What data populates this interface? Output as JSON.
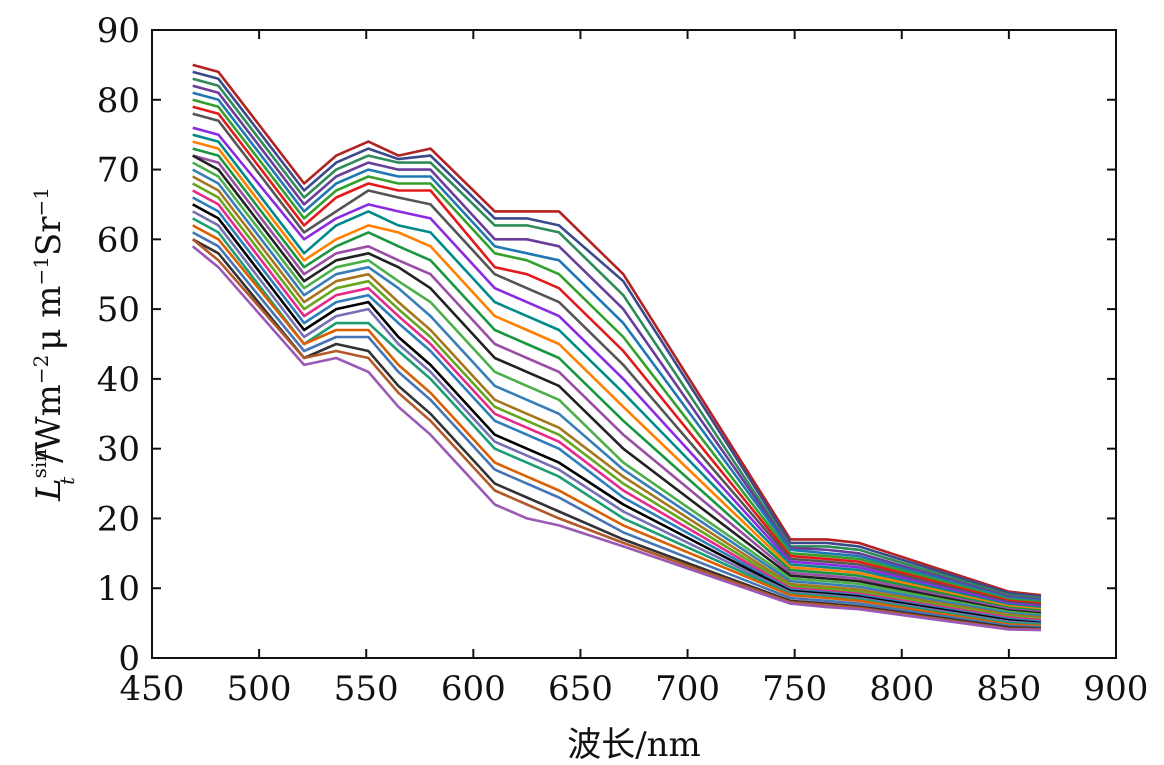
{
  "chart_data": {
    "type": "line",
    "title": "",
    "xlabel": "波长/nm",
    "ylabel": {
      "main": "L",
      "sub": "t",
      "sup": "sin",
      "unit_prefix": "/Wm",
      "exp1": "−2",
      "mid": "μ m",
      "exp2": "−1",
      "tail": "Sr",
      "exp3": "−1"
    },
    "xlim": [
      450,
      900
    ],
    "ylim": [
      0,
      90
    ],
    "xticks": [
      450,
      500,
      550,
      600,
      650,
      700,
      750,
      800,
      850,
      900
    ],
    "yticks": [
      0,
      10,
      20,
      30,
      40,
      50,
      60,
      70,
      80,
      90
    ],
    "grid": false,
    "legend": "none",
    "x": [
      469,
      481,
      521,
      536,
      551,
      565,
      580,
      610,
      625,
      640,
      670,
      748,
      765,
      780,
      850,
      865
    ],
    "series": [
      {
        "color": "#b22222",
        "values": [
          85,
          84,
          68,
          72,
          74,
          72,
          73,
          64,
          64,
          64,
          55,
          17,
          17,
          16.5,
          9.5,
          9
        ]
      },
      {
        "color": "#3b4a8c",
        "values": [
          84,
          83,
          67,
          71,
          73,
          71.5,
          72,
          63,
          63,
          62,
          54,
          16.5,
          16.5,
          16,
          9.3,
          8.8
        ]
      },
      {
        "color": "#2e8b57",
        "values": [
          83,
          82,
          66,
          70,
          72,
          71,
          71,
          62,
          62,
          61,
          52,
          16,
          16,
          15.5,
          9,
          8.6
        ]
      },
      {
        "color": "#6a3d9a",
        "values": [
          82,
          81,
          65,
          69,
          71,
          70,
          70,
          60,
          60,
          59,
          50,
          15.8,
          15.5,
          15,
          8.8,
          8.4
        ]
      },
      {
        "color": "#1f78b4",
        "values": [
          81,
          80,
          64,
          68,
          70,
          69,
          69,
          59,
          58,
          57,
          48,
          15.5,
          15,
          14.6,
          8.6,
          8.2
        ]
      },
      {
        "color": "#33a02c",
        "values": [
          80,
          79,
          63,
          67,
          69,
          68,
          68,
          58,
          57,
          55,
          46,
          15,
          14.6,
          14.2,
          8.4,
          8
        ]
      },
      {
        "color": "#e31a1c",
        "values": [
          79,
          78,
          62,
          66,
          68,
          67,
          67,
          56,
          55,
          53,
          44,
          14.6,
          14.2,
          13.8,
          8.2,
          7.8
        ]
      },
      {
        "color": "#555555",
        "values": [
          78,
          77,
          61,
          64,
          67,
          66,
          65,
          55,
          53,
          51,
          42,
          14.2,
          13.8,
          13.4,
          8,
          7.6
        ]
      },
      {
        "color": "#8a2be2",
        "values": [
          76,
          75,
          60,
          63,
          65,
          64,
          63,
          53,
          51,
          49,
          40,
          13.8,
          13.4,
          13,
          7.8,
          7.4
        ]
      },
      {
        "color": "#008b8b",
        "values": [
          75,
          74,
          58,
          62,
          64,
          62,
          61,
          51,
          49,
          47,
          38,
          13.4,
          13,
          12.6,
          7.6,
          7.2
        ]
      },
      {
        "color": "#ff7f00",
        "values": [
          74,
          73,
          57,
          60,
          62,
          61,
          59,
          49,
          47,
          45,
          36,
          13,
          12.6,
          12.2,
          7.4,
          7
        ]
      },
      {
        "color": "#1a9641",
        "values": [
          73,
          72,
          56,
          59,
          61,
          59,
          57,
          47,
          45,
          43,
          34,
          12.6,
          12.2,
          11.8,
          7.2,
          6.8
        ]
      },
      {
        "color": "#984ea3",
        "values": [
          72,
          71,
          55,
          58,
          59,
          57,
          55,
          45,
          43,
          41,
          32,
          12.2,
          11.8,
          11.4,
          7,
          6.6
        ]
      },
      {
        "color": "#222222",
        "values": [
          72,
          70,
          54,
          57,
          58,
          56,
          53,
          43,
          41,
          39,
          30,
          11.8,
          11.4,
          11,
          6.8,
          6.4
        ]
      },
      {
        "color": "#4daf4a",
        "values": [
          71,
          69,
          53,
          56,
          57,
          54,
          51,
          41,
          39,
          37,
          28,
          11.4,
          11,
          10.6,
          6.6,
          6.2
        ]
      },
      {
        "color": "#377eb8",
        "values": [
          70,
          68,
          52,
          55,
          56,
          53,
          49,
          39,
          37,
          35,
          27,
          11,
          10.6,
          10.2,
          6.4,
          6
        ]
      },
      {
        "color": "#a6761d",
        "values": [
          69,
          67,
          51,
          54,
          55,
          51,
          47,
          37,
          35,
          33,
          26,
          10.6,
          10.2,
          9.8,
          6.2,
          5.8
        ]
      },
      {
        "color": "#66a61e",
        "values": [
          68,
          66,
          50,
          53,
          54,
          50,
          46,
          36,
          34,
          32,
          25,
          10.3,
          9.9,
          9.5,
          6,
          5.6
        ]
      },
      {
        "color": "#e7298a",
        "values": [
          67,
          65,
          49,
          52,
          53,
          49,
          45,
          35,
          33,
          31,
          24,
          10,
          9.6,
          9.2,
          5.8,
          5.4
        ]
      },
      {
        "color": "#2c7fb8",
        "values": [
          66,
          64,
          48,
          51,
          52,
          48,
          44,
          34,
          32,
          30,
          23,
          9.8,
          9.4,
          9,
          5.6,
          5.2
        ]
      },
      {
        "color": "#000000",
        "values": [
          65,
          63,
          47,
          50,
          51,
          46,
          42,
          32,
          30,
          28,
          22,
          9.6,
          9.2,
          8.8,
          5.4,
          5
        ]
      },
      {
        "color": "#7570b3",
        "values": [
          64,
          62,
          46,
          49,
          50,
          45,
          41,
          31,
          29,
          27,
          21,
          9.4,
          9,
          8.6,
          5.2,
          4.9
        ]
      },
      {
        "color": "#1b9e77",
        "values": [
          63,
          61,
          45,
          48,
          48,
          44,
          40,
          30,
          28,
          26,
          20,
          9.2,
          8.8,
          8.4,
          5,
          4.8
        ]
      },
      {
        "color": "#d95f02",
        "values": [
          62,
          60,
          45,
          47,
          47,
          42,
          38,
          28,
          26,
          24,
          19,
          9,
          8.6,
          8.2,
          4.8,
          4.6
        ]
      },
      {
        "color": "#4575b4",
        "values": [
          61,
          59,
          44,
          46,
          46,
          41,
          37,
          27,
          25,
          23,
          18,
          8.6,
          8.2,
          7.8,
          4.6,
          4.4
        ]
      },
      {
        "color": "#333333",
        "values": [
          60,
          58,
          43,
          45,
          44,
          39,
          35,
          25,
          23,
          21,
          17,
          8.2,
          7.8,
          7.4,
          4.4,
          4.2
        ]
      },
      {
        "color": "#b15928",
        "values": [
          60,
          57,
          43,
          44,
          43,
          38,
          34,
          24,
          22,
          20,
          16.5,
          8,
          7.6,
          7.2,
          4.2,
          4.1
        ]
      },
      {
        "color": "#9b59b6",
        "values": [
          59,
          56,
          42,
          43,
          41,
          36,
          32,
          22,
          20,
          19,
          16,
          7.8,
          7.3,
          7,
          4.1,
          4
        ]
      }
    ]
  }
}
